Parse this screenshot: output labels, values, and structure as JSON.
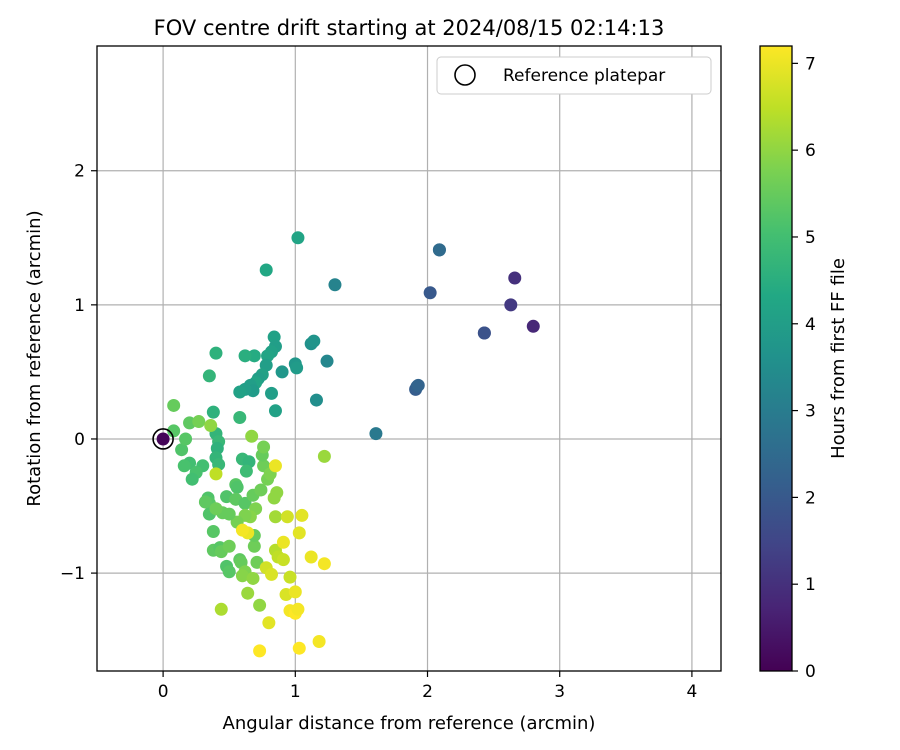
{
  "chart_data": {
    "type": "scatter",
    "title": "FOV centre drift starting at 2024/08/15 02:14:13",
    "xlabel": "Angular distance from reference (arcmin)",
    "ylabel": "Rotation from reference (arcmin)",
    "xlim": [
      -0.5,
      4.22
    ],
    "ylim": [
      -1.73,
      2.93
    ],
    "xticks": [
      0,
      1,
      2,
      3,
      4
    ],
    "xtick_labels": [
      "0",
      "1",
      "2",
      "3",
      "4"
    ],
    "yticks": [
      -1,
      0,
      1,
      2
    ],
    "ytick_labels": [
      "−1",
      "0",
      "1",
      "2"
    ],
    "grid": true,
    "legend": {
      "placement": "top-right",
      "entries": [
        "Reference platepar"
      ]
    },
    "reference_point": {
      "x": 0,
      "y": 0
    },
    "colorbar": {
      "label": "Hours from first FF file",
      "colormap": "viridis",
      "range": [
        0,
        7.2
      ],
      "ticks": [
        0,
        1,
        2,
        3,
        4,
        5,
        6,
        7
      ],
      "tick_labels": [
        "0",
        "1",
        "2",
        "3",
        "4",
        "5",
        "6",
        "7"
      ]
    },
    "points": [
      [
        0.0,
        0.0,
        0.1
      ],
      [
        2.8,
        0.84,
        0.8
      ],
      [
        2.66,
        1.2,
        1.0
      ],
      [
        2.63,
        1.0,
        1.2
      ],
      [
        2.43,
        0.79,
        1.7
      ],
      [
        2.43,
        0.79,
        1.8
      ],
      [
        2.02,
        1.09,
        2.0
      ],
      [
        1.91,
        0.37,
        2.1
      ],
      [
        1.92,
        0.39,
        2.2
      ],
      [
        1.93,
        0.4,
        2.3
      ],
      [
        2.09,
        1.41,
        2.4
      ],
      [
        2.09,
        1.41,
        2.5
      ],
      [
        1.61,
        0.04,
        2.9
      ],
      [
        1.3,
        1.15,
        3.2
      ],
      [
        1.24,
        0.58,
        3.3
      ],
      [
        1.16,
        0.29,
        3.5
      ],
      [
        1.02,
        1.5,
        4.2
      ],
      [
        0.78,
        1.26,
        4.3
      ],
      [
        1.12,
        0.71,
        3.6
      ],
      [
        1.14,
        0.73,
        3.7
      ],
      [
        1.0,
        0.56,
        3.8
      ],
      [
        1.01,
        0.53,
        3.9
      ],
      [
        0.9,
        0.5,
        3.8
      ],
      [
        0.84,
        0.76,
        4.1
      ],
      [
        0.85,
        0.69,
        4.0
      ],
      [
        0.82,
        0.65,
        4.1
      ],
      [
        0.79,
        0.62,
        4.2
      ],
      [
        0.78,
        0.55,
        4.0
      ],
      [
        0.75,
        0.48,
        4.1
      ],
      [
        0.72,
        0.45,
        4.0
      ],
      [
        0.7,
        0.42,
        4.2
      ],
      [
        0.66,
        0.4,
        4.0
      ],
      [
        0.68,
        0.36,
        3.9
      ],
      [
        0.62,
        0.37,
        4.0
      ],
      [
        0.58,
        0.35,
        4.1
      ],
      [
        0.82,
        0.34,
        4.0
      ],
      [
        0.85,
        0.21,
        4.1
      ],
      [
        0.69,
        0.62,
        4.4
      ],
      [
        0.62,
        0.62,
        4.5
      ],
      [
        0.4,
        0.64,
        4.6
      ],
      [
        0.35,
        0.47,
        4.7
      ],
      [
        0.38,
        0.2,
        4.6
      ],
      [
        0.58,
        0.16,
        4.8
      ],
      [
        0.4,
        0.04,
        4.7
      ],
      [
        0.42,
        -0.02,
        4.8
      ],
      [
        0.41,
        -0.07,
        4.6
      ],
      [
        0.4,
        -0.14,
        4.7
      ],
      [
        0.42,
        -0.19,
        4.8
      ],
      [
        0.6,
        -0.15,
        4.8
      ],
      [
        0.65,
        -0.17,
        4.7
      ],
      [
        0.63,
        -0.24,
        4.9
      ],
      [
        0.3,
        -0.2,
        5.0
      ],
      [
        0.2,
        -0.18,
        5.0
      ],
      [
        0.25,
        -0.25,
        5.1
      ],
      [
        0.22,
        -0.3,
        5.0
      ],
      [
        0.16,
        -0.2,
        5.1
      ],
      [
        0.14,
        -0.08,
        5.2
      ],
      [
        0.17,
        0.0,
        5.3
      ],
      [
        0.2,
        0.12,
        5.4
      ],
      [
        0.08,
        0.06,
        5.3
      ],
      [
        0.08,
        0.25,
        5.5
      ],
      [
        0.27,
        0.13,
        5.7
      ],
      [
        0.36,
        0.1,
        6.0
      ],
      [
        0.34,
        -0.44,
        5.2
      ],
      [
        0.35,
        -0.48,
        5.3
      ],
      [
        0.32,
        -0.47,
        5.4
      ],
      [
        0.35,
        -0.56,
        5.2
      ],
      [
        0.48,
        -0.43,
        5.2
      ],
      [
        0.55,
        -0.34,
        5.3
      ],
      [
        0.56,
        -0.36,
        5.2
      ],
      [
        0.55,
        -0.45,
        5.4
      ],
      [
        0.62,
        -0.48,
        5.3
      ],
      [
        0.68,
        -0.42,
        5.5
      ],
      [
        0.74,
        -0.38,
        5.6
      ],
      [
        0.79,
        -0.3,
        5.7
      ],
      [
        0.76,
        -0.2,
        5.6
      ],
      [
        0.75,
        -0.12,
        5.5
      ],
      [
        0.76,
        -0.06,
        5.7
      ],
      [
        0.81,
        -0.26,
        5.8
      ],
      [
        0.67,
        0.02,
        6.0
      ],
      [
        0.86,
        -0.4,
        6.0
      ],
      [
        0.84,
        -0.44,
        6.0
      ],
      [
        0.85,
        -0.58,
        6.2
      ],
      [
        0.7,
        -0.52,
        5.8
      ],
      [
        0.66,
        -0.58,
        5.9
      ],
      [
        0.62,
        -0.57,
        5.8
      ],
      [
        0.56,
        -0.62,
        5.7
      ],
      [
        0.5,
        -0.56,
        5.5
      ],
      [
        0.45,
        -0.55,
        5.5
      ],
      [
        0.4,
        -0.52,
        5.6
      ],
      [
        0.38,
        -0.69,
        5.3
      ],
      [
        0.38,
        -0.83,
        5.4
      ],
      [
        0.43,
        -0.81,
        5.3
      ],
      [
        0.44,
        -0.84,
        5.5
      ],
      [
        0.5,
        -0.8,
        5.6
      ],
      [
        0.48,
        -0.95,
        5.2
      ],
      [
        0.5,
        -0.99,
        5.3
      ],
      [
        0.58,
        -0.9,
        5.4
      ],
      [
        0.59,
        -0.92,
        5.5
      ],
      [
        0.69,
        -0.8,
        5.6
      ],
      [
        0.69,
        -0.72,
        5.5
      ],
      [
        0.71,
        -0.92,
        5.6
      ],
      [
        0.62,
        -0.99,
        5.8
      ],
      [
        0.6,
        -1.02,
        5.9
      ],
      [
        0.68,
        -1.04,
        6.0
      ],
      [
        0.64,
        -1.15,
        6.1
      ],
      [
        0.73,
        -1.24,
        6.0
      ],
      [
        0.44,
        -1.27,
        6.3
      ],
      [
        0.4,
        -0.26,
        6.5
      ],
      [
        0.85,
        -0.83,
        6.4
      ],
      [
        0.87,
        -0.88,
        6.5
      ],
      [
        0.91,
        -0.9,
        6.6
      ],
      [
        0.94,
        -0.58,
        6.7
      ],
      [
        1.05,
        -0.57,
        6.9
      ],
      [
        1.03,
        -0.7,
        6.9
      ],
      [
        0.91,
        -0.77,
        7.0
      ],
      [
        0.85,
        -0.2,
        7.0
      ],
      [
        0.64,
        -0.7,
        7.0
      ],
      [
        0.6,
        -0.68,
        7.1
      ],
      [
        0.78,
        -0.96,
        6.7
      ],
      [
        0.82,
        -1.01,
        6.8
      ],
      [
        0.96,
        -1.03,
        6.6
      ],
      [
        0.93,
        -1.16,
        6.8
      ],
      [
        1.0,
        -1.14,
        7.0
      ],
      [
        0.96,
        -1.28,
        7.1
      ],
      [
        1.0,
        -1.3,
        7.2
      ],
      [
        1.02,
        -1.27,
        7.1
      ],
      [
        1.03,
        -1.56,
        7.2
      ],
      [
        1.18,
        -1.51,
        7.1
      ],
      [
        1.12,
        -0.88,
        7.0
      ],
      [
        1.22,
        -0.93,
        7.1
      ],
      [
        0.8,
        -1.37,
        6.9
      ],
      [
        0.73,
        -1.58,
        7.2
      ],
      [
        1.22,
        -0.13,
        6.1
      ]
    ]
  }
}
